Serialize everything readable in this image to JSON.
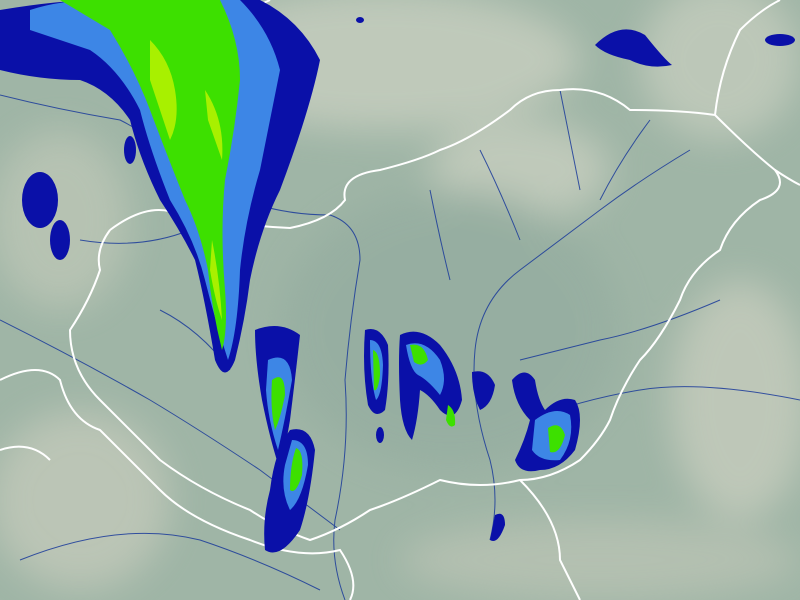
{
  "map": {
    "type": "precipitation radar overlay",
    "colors": {
      "background_lowland": "#9fb5a6",
      "background_highland": "#c2cbbd",
      "border": "#ffffff",
      "river": "#1a3a9a",
      "precip_light": "#0a10a8",
      "precip_moderate": "#3d86e6",
      "precip_heavy": "#3de000",
      "precip_very_heavy": "#a8f000"
    }
  }
}
